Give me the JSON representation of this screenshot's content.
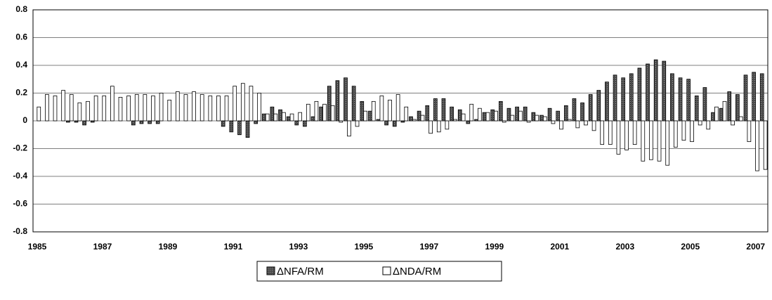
{
  "chart_data": {
    "type": "bar",
    "categories": [
      "1985",
      null,
      null,
      null,
      null,
      null,
      null,
      null,
      "1987",
      null,
      null,
      null,
      null,
      null,
      null,
      null,
      "1989",
      null,
      null,
      null,
      null,
      null,
      null,
      null,
      "1991",
      null,
      null,
      null,
      null,
      null,
      null,
      null,
      "1993",
      null,
      null,
      null,
      null,
      null,
      null,
      null,
      "1995",
      null,
      null,
      null,
      null,
      null,
      null,
      null,
      "1997",
      null,
      null,
      null,
      null,
      null,
      null,
      null,
      "1999",
      null,
      null,
      null,
      null,
      null,
      null,
      null,
      "2001",
      null,
      null,
      null,
      null,
      null,
      null,
      null,
      "2003",
      null,
      null,
      null,
      null,
      null,
      null,
      null,
      "2005",
      null,
      null,
      null,
      null,
      null,
      null,
      null,
      "2007",
      null
    ],
    "series": [
      {
        "name": "ΔNFA/RM",
        "color": "#4d4d4d",
        "values": [
          0,
          0,
          0,
          0,
          -0.01,
          -0.01,
          -0.03,
          -0.01,
          0,
          0,
          0,
          0,
          -0.03,
          -0.02,
          -0.02,
          -0.02,
          0,
          0,
          0,
          0,
          0,
          0,
          0,
          -0.04,
          -0.08,
          -0.1,
          -0.12,
          -0.02,
          0.05,
          0.1,
          0.08,
          0.03,
          -0.03,
          -0.04,
          0.03,
          0.1,
          0.25,
          0.29,
          0.31,
          0.25,
          0.14,
          0.07,
          0.01,
          -0.03,
          -0.04,
          -0.01,
          0.03,
          0.07,
          0.11,
          0.16,
          0.16,
          0.1,
          0.08,
          -0.02,
          0.01,
          0.06,
          0.08,
          0.14,
          0.09,
          0.1,
          0.1,
          0.06,
          0.04,
          0.09,
          0.07,
          0.11,
          0.16,
          0.13,
          0.19,
          0.22,
          0.28,
          0.33,
          0.31,
          0.34,
          0.38,
          0.41,
          0.44,
          0.43,
          0.34,
          0.31,
          0.3,
          0.18,
          0.24,
          0.06,
          0.09,
          0.21,
          0.19,
          0.33,
          0.35,
          0.34
        ]
      },
      {
        "name": "ΔNDA/RM",
        "color": "#ffffff",
        "values": [
          0.1,
          0.19,
          0.18,
          0.22,
          0.19,
          0.13,
          0.14,
          0.18,
          0.18,
          0.25,
          0.17,
          0.18,
          0.19,
          0.19,
          0.18,
          0.2,
          0.15,
          0.21,
          0.19,
          0.21,
          0.19,
          0.18,
          0.18,
          0.18,
          0.25,
          0.27,
          0.25,
          0.2,
          0.05,
          0.05,
          0.06,
          0.05,
          0.06,
          0.12,
          0.14,
          0.12,
          0.11,
          -0.01,
          -0.11,
          -0.04,
          0.07,
          0.14,
          0.18,
          0.15,
          0.19,
          0.1,
          0.01,
          0.04,
          -0.09,
          -0.08,
          -0.06,
          0.01,
          0.05,
          0.12,
          0.09,
          0.06,
          0.07,
          -0.01,
          0.04,
          0.07,
          -0.01,
          0.04,
          0.03,
          -0.02,
          -0.06,
          0.01,
          -0.05,
          -0.03,
          -0.07,
          -0.17,
          -0.17,
          -0.24,
          -0.21,
          -0.17,
          -0.29,
          -0.28,
          -0.29,
          -0.32,
          -0.19,
          -0.14,
          -0.15,
          -0.03,
          -0.06,
          0.1,
          0.14,
          -0.03,
          0.03,
          -0.15,
          -0.36,
          -0.35
        ]
      }
    ],
    "ylim": [
      -0.8,
      0.8
    ],
    "yticks": [
      0.8,
      0.6,
      0.4,
      0.2,
      0,
      -0.2,
      -0.4,
      -0.6,
      -0.8
    ],
    "grid": true
  }
}
